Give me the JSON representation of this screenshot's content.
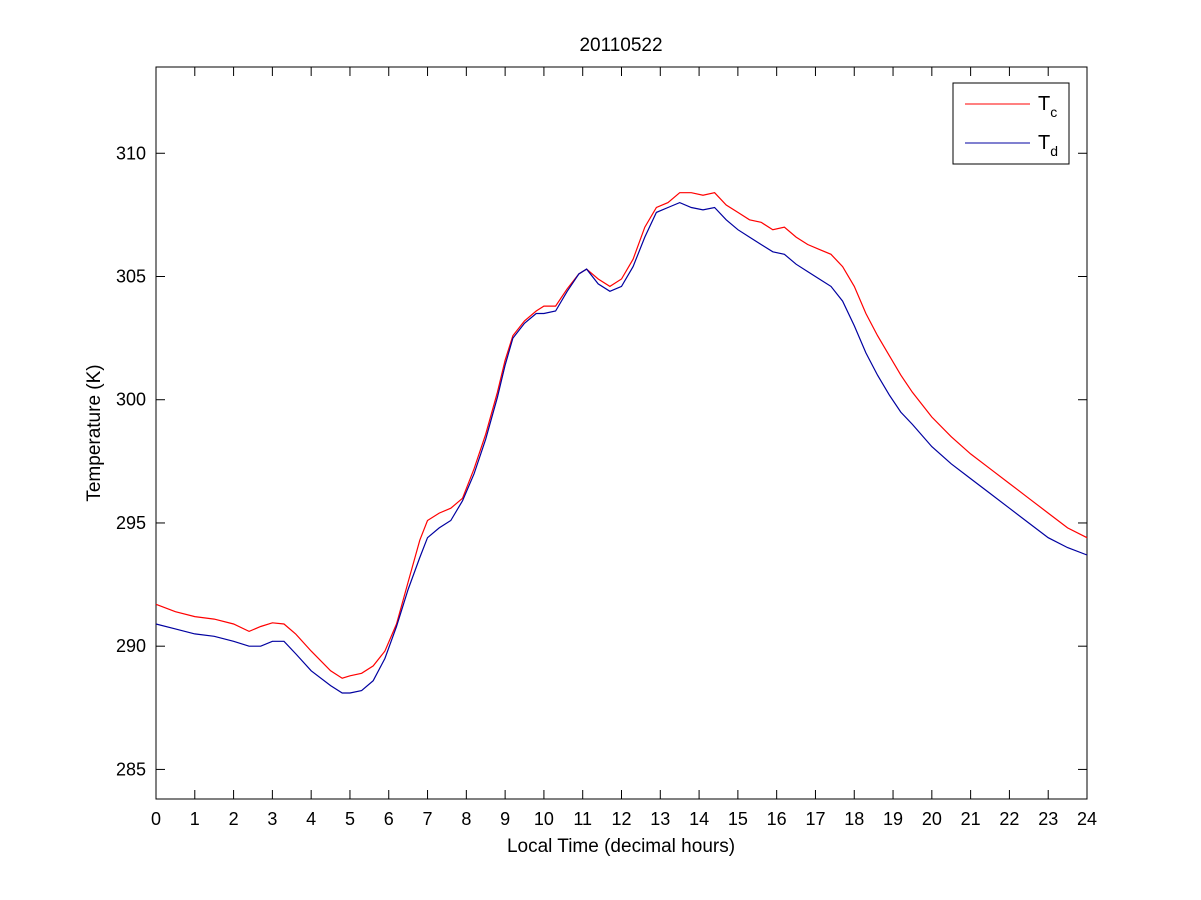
{
  "chart_data": {
    "type": "line",
    "title": "20110522",
    "xlabel": "Local Time (decimal hours)",
    "ylabel": "Temperature (K)",
    "xlim": [
      0,
      24
    ],
    "ylim": [
      283.8,
      313.5
    ],
    "xticks": [
      0,
      1,
      2,
      3,
      4,
      5,
      6,
      7,
      8,
      9,
      10,
      11,
      12,
      13,
      14,
      15,
      16,
      17,
      18,
      19,
      20,
      21,
      22,
      23,
      24
    ],
    "yticks": [
      285,
      290,
      295,
      300,
      305,
      310
    ],
    "grid": false,
    "legend_position": "top-right",
    "series": [
      {
        "name": "T",
        "subscript": "c",
        "color": "#ff0000",
        "x": [
          0,
          0.5,
          1,
          1.5,
          2,
          2.4,
          2.7,
          3,
          3.3,
          3.6,
          4,
          4.5,
          4.8,
          5,
          5.3,
          5.6,
          5.9,
          6.2,
          6.5,
          6.8,
          7,
          7.3,
          7.6,
          7.9,
          8.2,
          8.5,
          8.8,
          9,
          9.2,
          9.5,
          9.8,
          10,
          10.3,
          10.6,
          10.9,
          11.1,
          11.4,
          11.7,
          12,
          12.3,
          12.6,
          12.9,
          13.2,
          13.5,
          13.8,
          14.1,
          14.4,
          14.7,
          15,
          15.3,
          15.6,
          15.9,
          16.2,
          16.5,
          16.8,
          17.1,
          17.4,
          17.7,
          18,
          18.3,
          18.6,
          18.9,
          19.2,
          19.5,
          20,
          20.5,
          21,
          21.5,
          22,
          22.5,
          23,
          23.5,
          24
        ],
        "y": [
          291.7,
          291.4,
          291.2,
          291.1,
          290.9,
          290.6,
          290.8,
          290.95,
          290.9,
          290.5,
          289.8,
          289.0,
          288.7,
          288.8,
          288.9,
          289.2,
          289.8,
          290.9,
          292.6,
          294.3,
          295.1,
          295.4,
          295.6,
          296.0,
          297.2,
          298.6,
          300.3,
          301.6,
          302.6,
          303.2,
          303.6,
          303.8,
          303.8,
          304.5,
          305.1,
          305.3,
          304.9,
          304.6,
          304.9,
          305.7,
          307.0,
          307.8,
          308.0,
          308.4,
          308.4,
          308.3,
          308.4,
          307.9,
          307.6,
          307.3,
          307.2,
          306.9,
          307.0,
          306.6,
          306.3,
          306.1,
          305.9,
          305.4,
          304.6,
          303.5,
          302.6,
          301.8,
          301.0,
          300.3,
          299.3,
          298.5,
          297.8,
          297.2,
          296.6,
          296.0,
          295.4,
          294.8,
          294.4
        ]
      },
      {
        "name": "T",
        "subscript": "d",
        "color": "#0000a0",
        "x": [
          0,
          0.5,
          1,
          1.5,
          2,
          2.4,
          2.7,
          3,
          3.3,
          3.6,
          4,
          4.5,
          4.8,
          5,
          5.3,
          5.6,
          5.9,
          6.2,
          6.5,
          6.8,
          7,
          7.3,
          7.6,
          7.9,
          8.2,
          8.5,
          8.8,
          9,
          9.2,
          9.5,
          9.8,
          10,
          10.3,
          10.6,
          10.9,
          11.1,
          11.4,
          11.7,
          12,
          12.3,
          12.6,
          12.9,
          13.2,
          13.5,
          13.8,
          14.1,
          14.4,
          14.7,
          15,
          15.3,
          15.6,
          15.9,
          16.2,
          16.5,
          16.8,
          17.1,
          17.4,
          17.7,
          18,
          18.3,
          18.6,
          18.9,
          19.2,
          19.5,
          20,
          20.5,
          21,
          21.5,
          22,
          22.5,
          23,
          23.5,
          24
        ],
        "y": [
          290.9,
          290.7,
          290.5,
          290.4,
          290.2,
          290.0,
          290.0,
          290.2,
          290.2,
          289.7,
          289.0,
          288.4,
          288.1,
          288.1,
          288.2,
          288.6,
          289.5,
          290.8,
          292.3,
          293.6,
          294.4,
          294.8,
          295.1,
          295.9,
          297.0,
          298.4,
          300.1,
          301.4,
          302.5,
          303.1,
          303.5,
          303.5,
          303.6,
          304.4,
          305.1,
          305.3,
          304.7,
          304.4,
          304.6,
          305.4,
          306.6,
          307.6,
          307.8,
          308.0,
          307.8,
          307.7,
          307.8,
          307.3,
          306.9,
          306.6,
          306.3,
          306.0,
          305.9,
          305.5,
          305.2,
          304.9,
          304.6,
          304.0,
          303.0,
          301.9,
          301.0,
          300.2,
          299.5,
          299.0,
          298.1,
          297.4,
          296.8,
          296.2,
          295.6,
          295.0,
          294.4,
          294.0,
          293.7
        ]
      }
    ]
  }
}
